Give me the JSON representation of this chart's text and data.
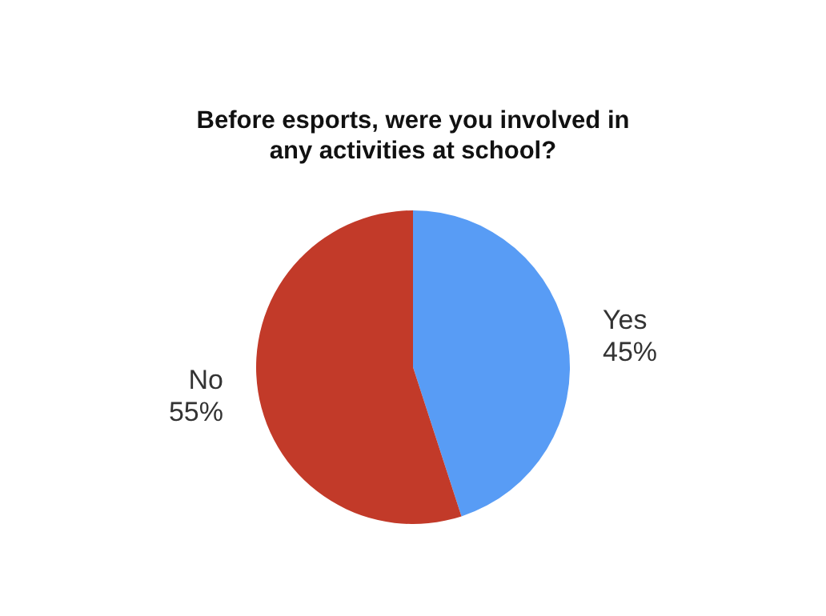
{
  "chart_data": {
    "type": "pie",
    "title": "Before esports, were you involved in any activities at school?",
    "categories": [
      "Yes",
      "No"
    ],
    "values": [
      45,
      55
    ],
    "value_labels": [
      "45%",
      "55%"
    ],
    "colors": [
      "#589cf5",
      "#c23a29"
    ],
    "legend": false
  }
}
